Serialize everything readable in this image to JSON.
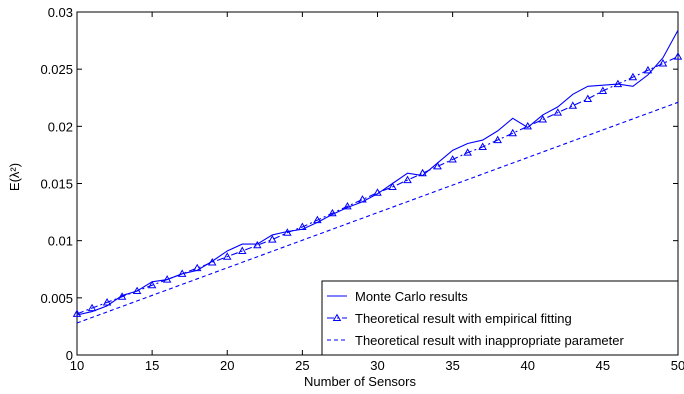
{
  "chart_data": {
    "type": "line",
    "xlabel": "Number of Sensors",
    "ylabel": "E(λ²)",
    "xlim": [
      10,
      50
    ],
    "ylim": [
      0,
      0.03
    ],
    "xticks": [
      "10",
      "15",
      "20",
      "25",
      "30",
      "35",
      "40",
      "45",
      "50"
    ],
    "yticks": [
      "0",
      "0.005",
      "0.01",
      "0.015",
      "0.02",
      "0.025",
      "0.03"
    ],
    "grid": false,
    "legend_position": "bottom-right",
    "series": [
      {
        "name": "Monte Carlo results",
        "style": "solid",
        "marker": "none",
        "color": "#0000ff",
        "x": [
          10,
          11,
          12,
          13,
          14,
          15,
          16,
          17,
          18,
          19,
          20,
          21,
          22,
          23,
          24,
          25,
          26,
          27,
          28,
          29,
          30,
          31,
          32,
          33,
          34,
          35,
          36,
          37,
          38,
          39,
          40,
          41,
          42,
          43,
          44,
          45,
          46,
          47,
          48,
          49,
          50
        ],
        "y": [
          0.0035,
          0.0038,
          0.0043,
          0.0052,
          0.0056,
          0.0064,
          0.0066,
          0.0071,
          0.0074,
          0.0082,
          0.0091,
          0.0097,
          0.0097,
          0.0105,
          0.0108,
          0.011,
          0.0116,
          0.0123,
          0.0129,
          0.0134,
          0.0141,
          0.015,
          0.0159,
          0.0157,
          0.0168,
          0.0179,
          0.0185,
          0.0188,
          0.0196,
          0.0207,
          0.0199,
          0.021,
          0.0217,
          0.0228,
          0.0235,
          0.0236,
          0.0237,
          0.0235,
          0.0245,
          0.026,
          0.0284
        ]
      },
      {
        "name": "Theoretical result with empirical fitting",
        "style": "dash-dot",
        "marker": "triangle",
        "color": "#0000ff",
        "x": [
          10,
          11,
          12,
          13,
          14,
          15,
          16,
          17,
          18,
          19,
          20,
          21,
          22,
          23,
          24,
          25,
          26,
          27,
          28,
          29,
          30,
          31,
          32,
          33,
          34,
          35,
          36,
          37,
          38,
          39,
          40,
          41,
          42,
          43,
          44,
          45,
          46,
          47,
          48,
          49,
          50
        ],
        "y": [
          0.0036,
          0.0041,
          0.0046,
          0.0051,
          0.0056,
          0.0061,
          0.0066,
          0.0071,
          0.0076,
          0.0081,
          0.0086,
          0.0091,
          0.0096,
          0.0101,
          0.0107,
          0.0112,
          0.0118,
          0.0124,
          0.013,
          0.0136,
          0.0142,
          0.0147,
          0.0153,
          0.0159,
          0.0165,
          0.0171,
          0.0177,
          0.0182,
          0.0188,
          0.0194,
          0.02,
          0.0206,
          0.0212,
          0.0218,
          0.0224,
          0.0231,
          0.0237,
          0.0243,
          0.0249,
          0.0255,
          0.0261
        ]
      },
      {
        "name": "Theoretical result with inappropriate parameter",
        "style": "dashed",
        "marker": "none",
        "color": "#0000ff",
        "x": [
          10,
          50
        ],
        "y": [
          0.0028,
          0.0221
        ]
      }
    ]
  }
}
